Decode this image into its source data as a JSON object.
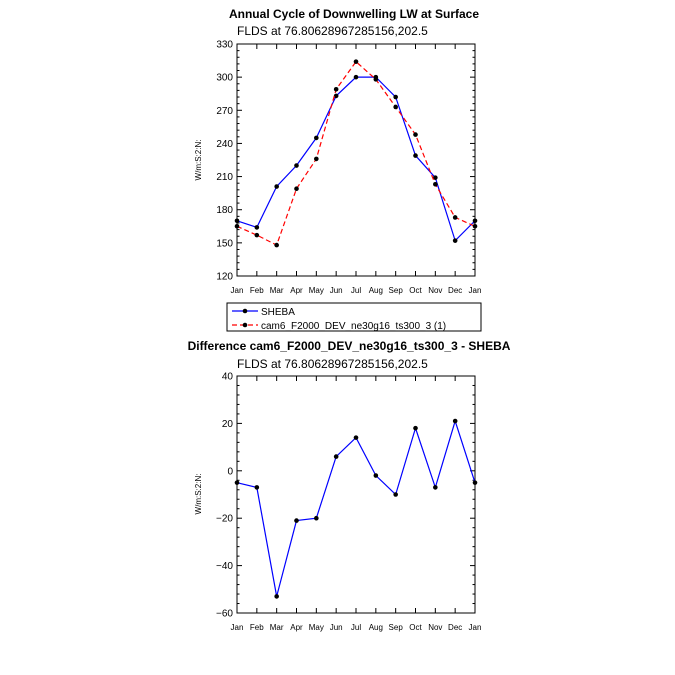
{
  "chart_data": [
    {
      "type": "line",
      "title": "Annual Cycle of Downwelling LW at Surface",
      "subtitle": "FLDS  at  76.80628967285156,202.5",
      "ylabel": "W/m:S:2:N:",
      "categories": [
        "Jan",
        "Feb",
        "Mar",
        "Apr",
        "May",
        "Jun",
        "Jul",
        "Aug",
        "Sep",
        "Oct",
        "Nov",
        "Dec",
        "Jan"
      ],
      "ylim": [
        120,
        330
      ],
      "yticks": [
        "120",
        "150",
        "180",
        "210",
        "240",
        "270",
        "300",
        "330"
      ],
      "series": [
        {
          "name": "SHEBA",
          "color": "#0000ff",
          "dash": "solid",
          "values": [
            170,
            164,
            201,
            220,
            245,
            283,
            300,
            300,
            282,
            229,
            209,
            152,
            170
          ]
        },
        {
          "name": "cam6_F2000_DEV_ne30g16_ts300_3 (1)",
          "color": "#ff0000",
          "dash": "dashed",
          "values": [
            165,
            157,
            148,
            199,
            226,
            289,
            314,
            298,
            273,
            248,
            203,
            173,
            165
          ]
        }
      ]
    },
    {
      "type": "line",
      "title": "Difference cam6_F2000_DEV_ne30g16_ts300_3 - SHEBA",
      "subtitle": "FLDS  at  76.80628967285156,202.5",
      "ylabel": "W/m:S:2:N:",
      "categories": [
        "Jan",
        "Feb",
        "Mar",
        "Apr",
        "May",
        "Jun",
        "Jul",
        "Aug",
        "Sep",
        "Oct",
        "Nov",
        "Dec",
        "Jan"
      ],
      "ylim": [
        -60,
        40
      ],
      "yticks": [
        "−60",
        "−40",
        "−20",
        "0",
        "20",
        "40"
      ],
      "series": [
        {
          "color": "#0000ff",
          "dash": "solid",
          "values": [
            -5,
            -7,
            -53,
            -21,
            -20,
            6,
            14,
            -2,
            -10,
            18,
            -7,
            21,
            -5
          ]
        }
      ]
    }
  ],
  "legend": {
    "position": "below-top-chart",
    "entries": [
      "SHEBA",
      "cam6_F2000_DEV_ne30g16_ts300_3 (1)"
    ]
  }
}
